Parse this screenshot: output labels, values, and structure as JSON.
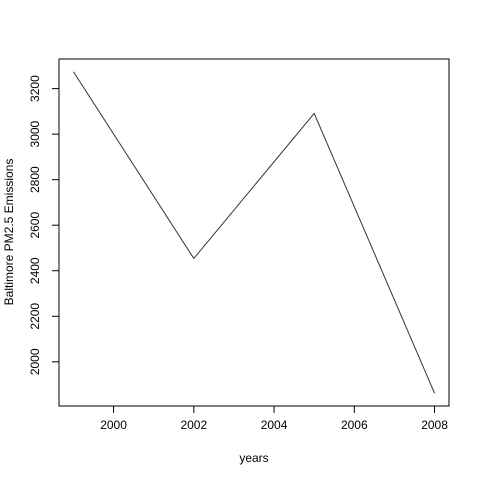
{
  "chart_data": {
    "type": "line",
    "x_label": "years",
    "y_label": "Baltimore PM2.5 Emissions",
    "x": [
      1999,
      2002,
      2005,
      2008
    ],
    "values": [
      3274,
      2454,
      3091,
      1862
    ],
    "color": "#333333",
    "xlim": [
      1998.64,
      2008.36
    ],
    "xticks": [
      2000,
      2002,
      2004,
      2006,
      2008
    ],
    "ylim": [
      1806,
      3330
    ],
    "yticks": [
      2000,
      2200,
      2400,
      2600,
      2800,
      3000,
      3200
    ],
    "grid": false
  }
}
